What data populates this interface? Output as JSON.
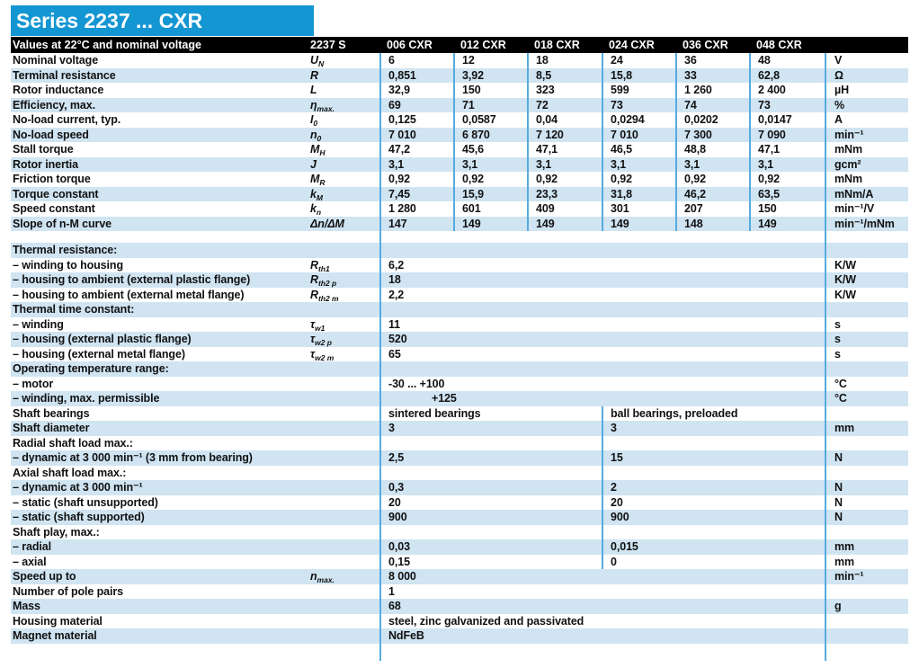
{
  "title": "Series 2237 ... CXR",
  "colors": {
    "accent_blue": "#1496d2",
    "row_shade": "#d0e4f2",
    "divider_blue": "#56abdf",
    "header_bg": "#000000",
    "text": "#111111"
  },
  "header": {
    "bar_label": "Values at 22°C and nominal voltage",
    "series": "2237 S",
    "columns": [
      "006 CXR",
      "012 CXR",
      "018 CXR",
      "024 CXR",
      "036 CXR",
      "048 CXR"
    ]
  },
  "table": {
    "rows": [
      {
        "t": "v6",
        "shaded": false,
        "label": "Nominal voltage",
        "sym": "U",
        "sub": "N",
        "values": [
          "6",
          "12",
          "18",
          "24",
          "36",
          "48"
        ],
        "unit": "V"
      },
      {
        "t": "v6",
        "shaded": true,
        "label": "Terminal resistance",
        "sym": "R",
        "sub": "",
        "values": [
          "0,851",
          "3,92",
          "8,5",
          "15,8",
          "33",
          "62,8"
        ],
        "unit": "Ω"
      },
      {
        "t": "v6",
        "shaded": false,
        "label": "Rotor inductance",
        "sym": "L",
        "sub": "",
        "values": [
          "32,9",
          "150",
          "323",
          "599",
          "1 260",
          "2 400"
        ],
        "unit": "µH"
      },
      {
        "t": "v6",
        "shaded": true,
        "label": "Efficiency, max.",
        "sym": "η",
        "sub": "max.",
        "values": [
          "69",
          "71",
          "72",
          "73",
          "74",
          "73"
        ],
        "unit": "%"
      },
      {
        "t": "v6",
        "shaded": false,
        "label": "No-load current, typ.",
        "sym": "I",
        "sub": "0",
        "values": [
          "0,125",
          "0,0587",
          "0,04",
          "0,0294",
          "0,0202",
          "0,0147"
        ],
        "unit": "A"
      },
      {
        "t": "v6",
        "shaded": true,
        "label": "No-load speed",
        "sym": "n",
        "sub": "0",
        "values": [
          "7 010",
          "6 870",
          "7 120",
          "7 010",
          "7 300",
          "7 090"
        ],
        "unit": "min⁻¹"
      },
      {
        "t": "v6",
        "shaded": false,
        "label": "Stall torque",
        "sym": "M",
        "sub": "H",
        "values": [
          "47,2",
          "45,6",
          "47,1",
          "46,5",
          "48,8",
          "47,1"
        ],
        "unit": "mNm"
      },
      {
        "t": "v6",
        "shaded": true,
        "label": "Rotor inertia",
        "sym": "J",
        "sub": "",
        "values": [
          "3,1",
          "3,1",
          "3,1",
          "3,1",
          "3,1",
          "3,1"
        ],
        "unit": "gcm²"
      },
      {
        "t": "v6",
        "shaded": false,
        "label": "Friction torque",
        "sym": "M",
        "sub": "R",
        "values": [
          "0,92",
          "0,92",
          "0,92",
          "0,92",
          "0,92",
          "0,92"
        ],
        "unit": "mNm"
      },
      {
        "t": "v6",
        "shaded": true,
        "label": "Torque constant",
        "sym": "k",
        "sub": "M",
        "values": [
          "7,45",
          "15,9",
          "23,3",
          "31,8",
          "46,2",
          "63,5"
        ],
        "unit": "mNm/A"
      },
      {
        "t": "v6",
        "shaded": false,
        "label": "Speed constant",
        "sym": "k",
        "sub": "n",
        "values": [
          "1 280",
          "601",
          "409",
          "301",
          "207",
          "150"
        ],
        "unit": "min⁻¹/V"
      },
      {
        "t": "v6",
        "shaded": true,
        "label": "Slope of n-M curve",
        "sym": "Δn/ΔM",
        "sub": "",
        "values": [
          "147",
          "149",
          "149",
          "149",
          "148",
          "149"
        ],
        "unit": "min⁻¹/mNm"
      },
      {
        "t": "gap"
      },
      {
        "t": "head",
        "shaded": true,
        "label": "Thermal resistance:"
      },
      {
        "t": "span",
        "shaded": false,
        "label": "– winding to housing",
        "sym": "R",
        "sub": "th1",
        "values": [
          "6,2"
        ],
        "unit": "K/W"
      },
      {
        "t": "span",
        "shaded": true,
        "label": "– housing to ambient (external plastic flange)",
        "sym": "R",
        "sub": "th2 p",
        "values": [
          "18"
        ],
        "unit": "K/W"
      },
      {
        "t": "span",
        "shaded": false,
        "label": "– housing to ambient (external metal flange)",
        "sym": "R",
        "sub": "th2 m",
        "values": [
          "2,2"
        ],
        "unit": "K/W"
      },
      {
        "t": "head",
        "shaded": true,
        "label": "Thermal time constant:"
      },
      {
        "t": "span",
        "shaded": false,
        "label": "– winding",
        "sym": "τ",
        "sub": "w1",
        "values": [
          "11"
        ],
        "unit": "s"
      },
      {
        "t": "span",
        "shaded": true,
        "label": "– housing (external plastic flange)",
        "sym": "τ",
        "sub": "w2 p",
        "values": [
          "520"
        ],
        "unit": "s"
      },
      {
        "t": "span",
        "shaded": false,
        "label": "– housing (external metal flange)",
        "sym": "τ",
        "sub": "w2 m",
        "values": [
          "65"
        ],
        "unit": "s"
      },
      {
        "t": "head",
        "shaded": true,
        "label": "Operating temperature range:"
      },
      {
        "t": "span",
        "shaded": false,
        "label": "– motor",
        "sym": "",
        "sub": "",
        "values": [
          "-30 ... +100"
        ],
        "unit": "°C"
      },
      {
        "t": "span",
        "shaded": true,
        "label": "– winding, max. permissible",
        "sym": "",
        "sub": "",
        "values": [
          "+125"
        ],
        "unit": "°C",
        "indent": 48
      },
      {
        "t": "two",
        "shaded": false,
        "label": "Shaft bearings",
        "values": [
          "sintered bearings",
          "ball bearings, preloaded"
        ],
        "unit": ""
      },
      {
        "t": "two",
        "shaded": true,
        "label": "Shaft diameter",
        "values": [
          "3",
          "3"
        ],
        "unit": "mm"
      },
      {
        "t": "head2",
        "shaded": false,
        "label": "Radial shaft load max.:"
      },
      {
        "t": "two",
        "shaded": true,
        "label": "– dynamic at 3 000 min⁻¹ (3 mm from bearing)",
        "values": [
          "2,5",
          "15"
        ],
        "unit": "N"
      },
      {
        "t": "head2",
        "shaded": false,
        "label": "Axial shaft load max.:"
      },
      {
        "t": "two",
        "shaded": true,
        "label": "– dynamic at 3 000 min⁻¹",
        "values": [
          "0,3",
          "2"
        ],
        "unit": "N"
      },
      {
        "t": "two",
        "shaded": false,
        "label": "– static (shaft unsupported)",
        "values": [
          "20",
          "20"
        ],
        "unit": "N"
      },
      {
        "t": "two",
        "shaded": true,
        "label": "– static (shaft supported)",
        "values": [
          "900",
          "900"
        ],
        "unit": "N"
      },
      {
        "t": "head2",
        "shaded": false,
        "label": "Shaft play, max.:"
      },
      {
        "t": "two",
        "shaded": true,
        "label": "– radial",
        "values": [
          "0,03",
          "0,015"
        ],
        "unit": "mm"
      },
      {
        "t": "two",
        "shaded": false,
        "label": "– axial",
        "values": [
          "0,15",
          "0"
        ],
        "unit": "mm"
      },
      {
        "t": "span",
        "shaded": true,
        "label": "Speed up to",
        "sym": "n",
        "sub": "max.",
        "values": [
          "8 000"
        ],
        "unit": "min⁻¹"
      },
      {
        "t": "span",
        "shaded": false,
        "label": "Number of pole pairs",
        "sym": "",
        "sub": "",
        "values": [
          "1"
        ],
        "unit": ""
      },
      {
        "t": "span",
        "shaded": true,
        "label": "Mass",
        "sym": "",
        "sub": "",
        "values": [
          "68"
        ],
        "unit": "g"
      },
      {
        "t": "span",
        "shaded": false,
        "label": "Housing material",
        "sym": "",
        "sub": "",
        "values": [
          "steel, zinc galvanized and passivated"
        ],
        "unit": ""
      },
      {
        "t": "span",
        "shaded": true,
        "label": "Magnet material",
        "sym": "",
        "sub": "",
        "values": [
          "NdFeB"
        ],
        "unit": ""
      },
      {
        "t": "end"
      }
    ]
  }
}
